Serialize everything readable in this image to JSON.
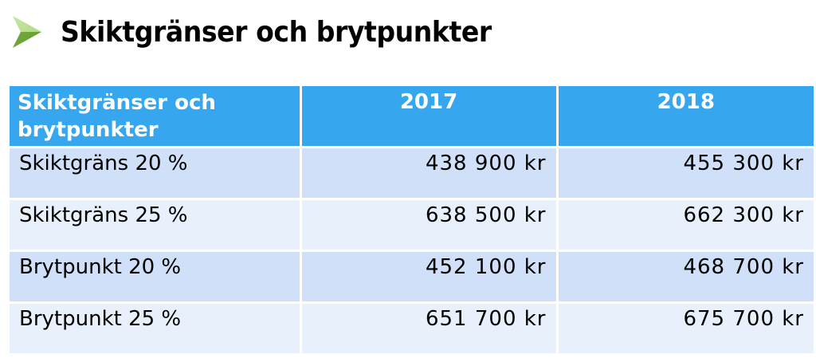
{
  "title": "Skiktgränser och brytpunkter",
  "colors": {
    "header_bg": "#36a6ef",
    "row_odd_bg": "#cfe0f8",
    "row_even_bg": "#e8f0fb",
    "bullet_green": "#6fae2f"
  },
  "bullet_icon": "arrow-bullet-icon",
  "table": {
    "headers": [
      "Skiktgränser och brytpunkter",
      "2017",
      "2018"
    ],
    "rows": [
      {
        "label": "Skiktgräns 20 %",
        "v2017": "438 900 kr",
        "v2018": "455 300 kr"
      },
      {
        "label": "Skiktgräns 25 %",
        "v2017": "638 500 kr",
        "v2018": "662 300 kr"
      },
      {
        "label": "Brytpunkt 20 %",
        "v2017": "452 100 kr",
        "v2018": "468 700 kr"
      },
      {
        "label": "Brytpunkt 25 %",
        "v2017": "651 700 kr",
        "v2018": "675 700 kr"
      }
    ]
  }
}
